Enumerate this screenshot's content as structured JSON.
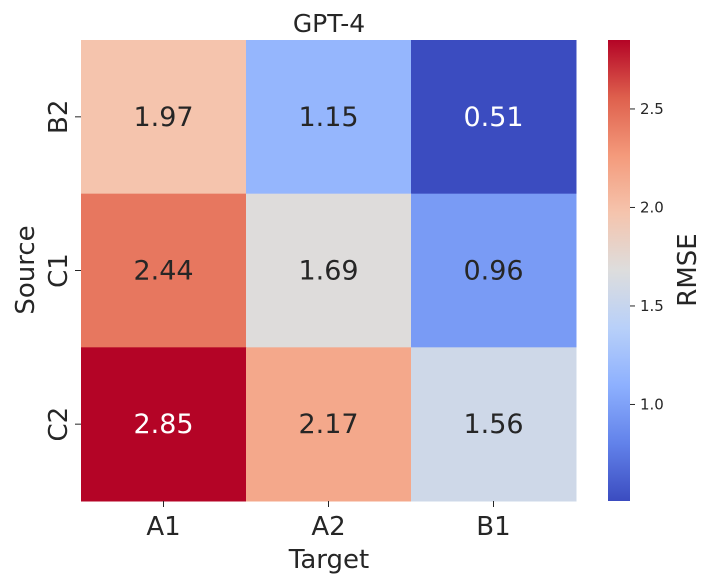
{
  "chart_data": {
    "type": "heatmap",
    "title": "GPT-4",
    "xlabel": "Target",
    "ylabel": "Source",
    "x_categories": [
      "A1",
      "A2",
      "B1"
    ],
    "y_categories": [
      "B2",
      "C1",
      "C2"
    ],
    "values": [
      [
        1.97,
        1.15,
        0.51
      ],
      [
        2.44,
        1.69,
        0.96
      ],
      [
        2.85,
        2.17,
        1.56
      ]
    ],
    "value_labels": [
      [
        "1.97",
        "1.15",
        "0.51"
      ],
      [
        "2.44",
        "1.69",
        "0.96"
      ],
      [
        "2.85",
        "2.17",
        "1.56"
      ]
    ],
    "colorbar": {
      "label": "RMSE",
      "colormap": "coolwarm",
      "min": 0.51,
      "max": 2.85,
      "ticks": [
        1.0,
        1.5,
        2.0,
        2.5
      ],
      "tick_labels": [
        "1.0",
        "1.5",
        "2.0",
        "2.5"
      ]
    },
    "grid": false
  }
}
